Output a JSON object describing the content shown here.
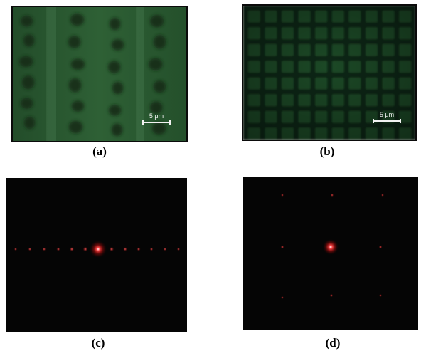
{
  "panels": {
    "a": {
      "caption": "(a)",
      "scale_label": "5 μm"
    },
    "b": {
      "caption": "(b)",
      "scale_label": "5 μm"
    },
    "c": {
      "caption": "(c)"
    },
    "d": {
      "caption": "(d)"
    }
  },
  "colors": {
    "micrograph_green": "#1f4b27",
    "micrograph_dark": "#0e2014",
    "laser_red": "#ff2b2b",
    "diffraction_bg": "#050505"
  }
}
